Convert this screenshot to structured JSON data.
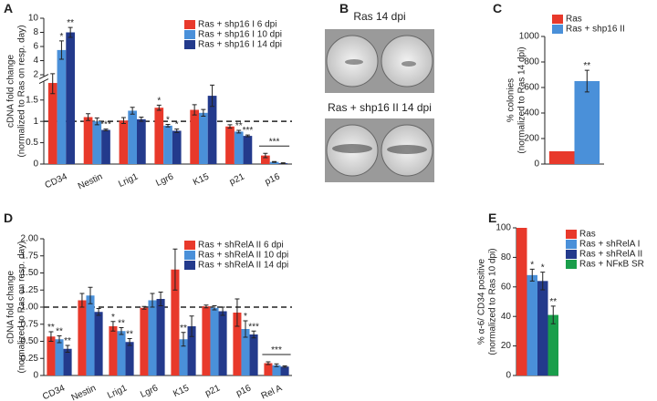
{
  "image_panel": {
    "panel": "B",
    "captions": [
      "Ras 14 dpi",
      "Ras + shp16 II 14 dpi"
    ]
  },
  "chart_data": [
    {
      "panel": "A",
      "type": "bar",
      "ylabel": [
        "cDNA fold change",
        "(normalized to Ras on resp. day)"
      ],
      "categories": [
        "CD34",
        "Nestin",
        "Lrig1",
        "Lgr6",
        "K15",
        "p21",
        "p16"
      ],
      "series": [
        {
          "name": "Ras + shp16 I 6 dpi",
          "color": "#e8392b",
          "values": [
            1.9,
            1.1,
            1.02,
            1.32,
            1.27,
            0.88,
            0.2
          ],
          "errors": [
            0.25,
            0.08,
            0.07,
            0.06,
            0.12,
            0.04,
            0.05
          ],
          "significance": [
            null,
            null,
            null,
            "*",
            null,
            null,
            null
          ]
        },
        {
          "name": "Ras + shp16 I 10 dpi",
          "color": "#4a90d9",
          "values": [
            5.5,
            1.0,
            1.25,
            0.9,
            1.2,
            0.76,
            0.05
          ],
          "errors": [
            1.3,
            0.08,
            0.08,
            0.03,
            0.08,
            0.03,
            0.01
          ],
          "significance": [
            "*",
            null,
            null,
            "*",
            null,
            "**",
            null
          ]
        },
        {
          "name": "Ras + shp16 I 14 dpi",
          "color": "#233a8c",
          "values": [
            8.0,
            0.8,
            1.05,
            0.78,
            1.6,
            0.66,
            0.02
          ],
          "errors": [
            0.7,
            0.02,
            0.05,
            0.04,
            0.25,
            0.02,
            0.01
          ],
          "significance": [
            "**",
            "***",
            null,
            "*",
            null,
            "***",
            null
          ]
        }
      ],
      "group_significance": [
        null,
        null,
        null,
        null,
        null,
        null,
        "***"
      ],
      "ylim": [
        0,
        10
      ],
      "axis_break": [
        1.9,
        2
      ],
      "yticks": [
        0,
        0.5,
        1,
        1.5,
        2,
        4,
        6,
        8,
        10
      ],
      "reference_line": 1,
      "legend": "upper right"
    },
    {
      "panel": "C",
      "type": "bar",
      "ylabel": [
        "% colonies",
        "(normalized to Ras 14 dpi)"
      ],
      "series": [
        {
          "name": "Ras",
          "color": "#e8392b",
          "values": [
            100
          ],
          "errors": [
            null
          ],
          "significance": [
            null
          ]
        },
        {
          "name": "Ras + shp16 II",
          "color": "#4a90d9",
          "values": [
            650
          ],
          "errors": [
            85
          ],
          "significance": [
            "**"
          ]
        }
      ],
      "ylim": [
        0,
        1000
      ],
      "yticks": [
        0,
        200,
        400,
        600,
        800,
        1000
      ],
      "legend": "top"
    },
    {
      "panel": "D",
      "type": "bar",
      "ylabel": [
        "cDNA fold change",
        "(normalized to Ras on resp. day)"
      ],
      "categories": [
        "CD34",
        "Nestin",
        "Lrig1",
        "Lgr6",
        "K15",
        "p21",
        "p16",
        "Rel A"
      ],
      "series": [
        {
          "name": "Ras + shRelA II 6 dpi",
          "color": "#e8392b",
          "values": [
            0.57,
            1.1,
            0.72,
            0.99,
            1.55,
            1.01,
            0.92,
            0.18
          ],
          "errors": [
            0.07,
            0.1,
            0.07,
            0.02,
            0.3,
            0.02,
            0.2,
            0.02
          ],
          "significance": [
            "**",
            null,
            "*",
            null,
            null,
            null,
            null,
            null
          ]
        },
        {
          "name": "Ras + shRelA II 10 dpi",
          "color": "#4a90d9",
          "values": [
            0.53,
            1.17,
            0.65,
            1.1,
            0.53,
            0.99,
            0.68,
            0.15
          ],
          "errors": [
            0.05,
            0.12,
            0.05,
            0.1,
            0.1,
            0.03,
            0.12,
            0.02
          ],
          "significance": [
            "**",
            null,
            "**",
            null,
            "**",
            null,
            "*",
            null
          ]
        },
        {
          "name": "Ras + shRelA II 14 dpi",
          "color": "#233a8c",
          "values": [
            0.39,
            0.93,
            0.49,
            1.12,
            0.72,
            0.94,
            0.6,
            0.13
          ],
          "errors": [
            0.05,
            0.05,
            0.05,
            0.1,
            0.15,
            0.06,
            0.05,
            0.01
          ],
          "significance": [
            "**",
            null,
            "**",
            null,
            null,
            null,
            "***",
            null
          ]
        }
      ],
      "group_significance": [
        null,
        null,
        null,
        null,
        null,
        null,
        null,
        "***"
      ],
      "ylim": [
        0,
        2
      ],
      "yticks": [
        0,
        0.25,
        {
          "value": 0.5,
          "label": "0.50"
        },
        0.75,
        {
          "value": 1,
          "label": "1.00"
        },
        1.25,
        {
          "value": 1.5,
          "label": "1.50"
        },
        1.75,
        {
          "value": 2,
          "label": "2.00"
        }
      ],
      "reference_line": 1,
      "legend": "upper right"
    },
    {
      "panel": "E",
      "type": "bar",
      "ylabel": [
        "% α-6/ CD34 positive",
        "(normalized to Ras 10 dpi)"
      ],
      "series": [
        {
          "name": "Ras",
          "color": "#e8392b",
          "values": [
            100
          ],
          "errors": [
            null
          ],
          "significance": [
            null
          ]
        },
        {
          "name": "Ras + shRelA I",
          "color": "#4a90d9",
          "values": [
            68
          ],
          "errors": [
            4
          ],
          "significance": [
            "*"
          ]
        },
        {
          "name": "Ras + shRelA II",
          "color": "#233a8c",
          "values": [
            64
          ],
          "errors": [
            6
          ],
          "significance": [
            "*"
          ]
        },
        {
          "name": "Ras + NFκB SR",
          "color": "#1a9e4b",
          "values": [
            41
          ],
          "errors": [
            6
          ],
          "significance": [
            "**"
          ]
        }
      ],
      "ylim": [
        0,
        100
      ],
      "yticks": [
        0,
        20,
        40,
        60,
        80,
        100
      ],
      "legend": "right"
    }
  ]
}
